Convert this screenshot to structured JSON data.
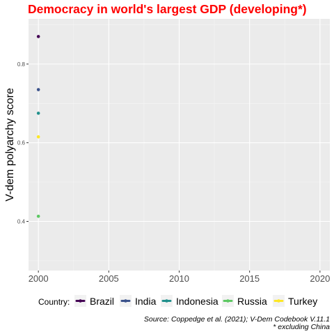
{
  "chart_data": {
    "type": "scatter",
    "title": "Democracy in world's largest GDP (developing*)",
    "xlabel": "",
    "ylabel": "V-dem polyarchy score",
    "xlim": [
      1999.3,
      2020.7
    ],
    "ylim": [
      0.275,
      0.915
    ],
    "x_ticks": [
      2000,
      2005,
      2010,
      2015,
      2020
    ],
    "y_ticks": [
      0.4,
      0.6,
      0.8
    ],
    "y_tick_labels": [
      "0.4",
      "0.6",
      "0.8"
    ],
    "grid": true,
    "legend": {
      "title": "Country:",
      "position": "bottom"
    },
    "series": [
      {
        "name": "Brazil",
        "color": "#440154",
        "points": [
          [
            2000,
            0.87
          ]
        ]
      },
      {
        "name": "India",
        "color": "#3b528b",
        "points": [
          [
            2000,
            0.735
          ]
        ]
      },
      {
        "name": "Indonesia",
        "color": "#21908c",
        "points": [
          [
            2000,
            0.675
          ]
        ]
      },
      {
        "name": "Russia",
        "color": "#5dc863",
        "points": [
          [
            2000,
            0.413
          ]
        ]
      },
      {
        "name": "Turkey",
        "color": "#fde725",
        "points": [
          [
            2000,
            0.615
          ]
        ]
      }
    ],
    "caption": [
      "Source: Coppedge et al. (2021); V-Dem Codebook V.11.1",
      "* excluding China"
    ]
  }
}
